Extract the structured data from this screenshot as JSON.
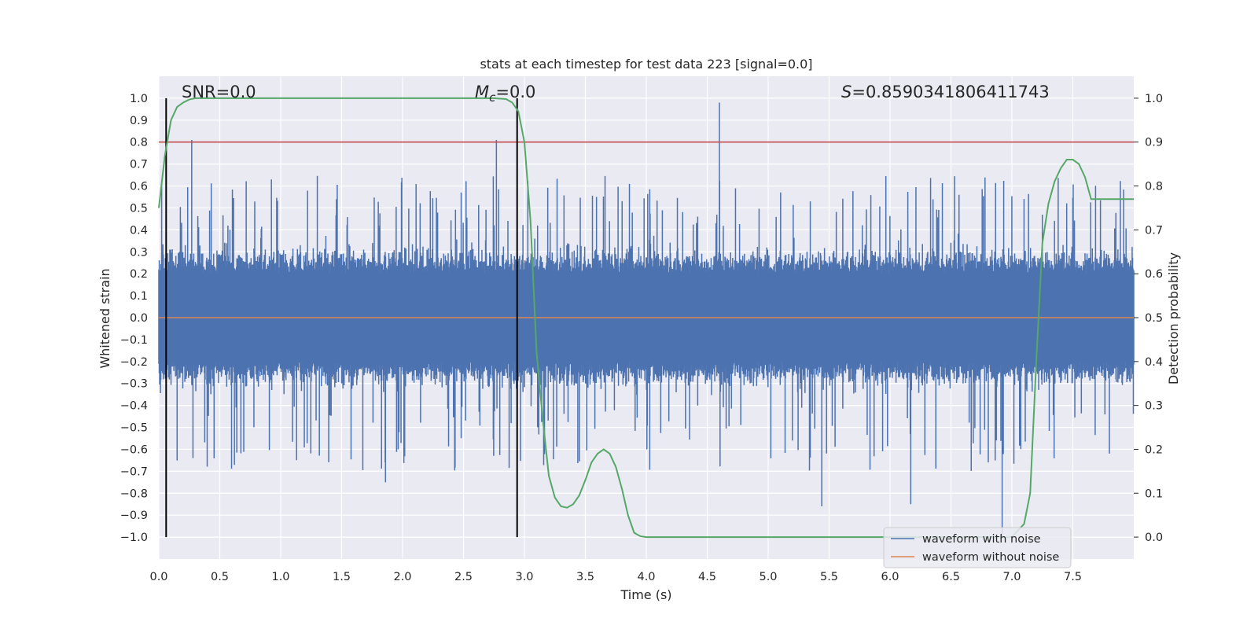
{
  "chart_data": {
    "type": "line",
    "title": "stats at each timestep for test data 223 [signal=0.0]",
    "xlabel": "Time (s)",
    "ylabel_left": "Whitened strain",
    "ylabel_right": "Detection probability",
    "xlim": [
      0.0,
      8.0
    ],
    "ylim_left": [
      -1.1,
      1.1
    ],
    "ylim_right": [
      -0.05,
      1.05
    ],
    "x_ticks": [
      0.0,
      0.5,
      1.0,
      1.5,
      2.0,
      2.5,
      3.0,
      3.5,
      4.0,
      4.5,
      5.0,
      5.5,
      6.0,
      6.5,
      7.0,
      7.5
    ],
    "x_tick_labels": [
      "0.0",
      "0.5",
      "1.0",
      "1.5",
      "2.0",
      "2.5",
      "3.0",
      "3.5",
      "4.0",
      "4.5",
      "5.0",
      "5.5",
      "6.0",
      "6.5",
      "7.0",
      "7.5"
    ],
    "y_left_ticks": [
      1.0,
      0.9,
      0.8,
      0.7,
      0.6,
      0.5,
      0.4,
      0.3,
      0.2,
      0.1,
      0.0,
      -0.1,
      -0.2,
      -0.3,
      -0.4,
      -0.5,
      -0.6,
      -0.7,
      -0.8,
      -0.9,
      -1.0
    ],
    "y_left_tick_labels": [
      "1.0",
      "0.9",
      "0.8",
      "0.7",
      "0.6",
      "0.5",
      "0.4",
      "0.3",
      "0.2",
      "0.1",
      "0.0",
      "−0.1",
      "−0.2",
      "−0.3",
      "−0.4",
      "−0.5",
      "−0.6",
      "−0.7",
      "−0.8",
      "−0.9",
      "−1.0"
    ],
    "y_right_ticks": [
      1.0,
      0.9,
      0.8,
      0.7,
      0.6,
      0.5,
      0.4,
      0.3,
      0.2,
      0.1,
      0.0
    ],
    "y_right_tick_labels": [
      "1.0",
      "0.9",
      "0.8",
      "0.7",
      "0.6",
      "0.5",
      "0.4",
      "0.3",
      "0.2",
      "0.1",
      "0.0"
    ],
    "annotations": {
      "snr": "SNR=0.0",
      "mc_symbol": "M",
      "mc_sub": "c",
      "mc_value": "=0.0",
      "s_symbol": "S",
      "s_value": "=0.8590341806411743"
    },
    "vertical_lines_x": [
      0.06,
      2.94
    ],
    "vertical_lines_ylim": [
      -1.0,
      1.0
    ],
    "threshold_line_detection_probability": 0.9,
    "series": [
      {
        "name": "waveform with noise",
        "color": "#4c72b0",
        "description_stats": {
          "typical_amplitude": 0.4,
          "notable_peaks": [
            [
              0.27,
              0.81
            ],
            [
              2.77,
              0.81
            ],
            [
              4.6,
              0.98
            ],
            [
              1.86,
              -0.75
            ],
            [
              6.92,
              -1.0
            ],
            [
              5.44,
              -0.86
            ],
            [
              6.17,
              -0.85
            ]
          ]
        }
      },
      {
        "name": "waveform without noise",
        "color": "#dd8452",
        "y_constant": 0.0
      },
      {
        "name": "detection probability",
        "color": "#55a868",
        "axis": "right",
        "x": [
          0.0,
          0.05,
          0.1,
          0.15,
          0.2,
          0.25,
          0.3,
          0.4,
          0.6,
          1.0,
          2.0,
          2.5,
          2.75,
          2.85,
          2.9,
          2.95,
          3.0,
          3.05,
          3.1,
          3.15,
          3.2,
          3.25,
          3.3,
          3.35,
          3.4,
          3.45,
          3.5,
          3.55,
          3.6,
          3.65,
          3.7,
          3.75,
          3.8,
          3.85,
          3.9,
          3.95,
          4.0,
          4.05,
          4.1,
          4.15,
          4.2,
          4.3,
          5.0,
          6.0,
          6.5,
          7.0,
          7.1,
          7.15,
          7.2,
          7.25,
          7.3,
          7.35,
          7.4,
          7.45,
          7.5,
          7.55,
          7.6,
          7.65,
          7.7,
          7.75,
          7.8,
          7.85,
          7.9,
          7.95,
          8.0
        ],
        "y": [
          0.75,
          0.87,
          0.95,
          0.98,
          0.99,
          0.997,
          1.0,
          1.0,
          1.0,
          1.0,
          1.0,
          1.0,
          1.0,
          0.998,
          0.99,
          0.97,
          0.9,
          0.72,
          0.42,
          0.27,
          0.14,
          0.09,
          0.07,
          0.067,
          0.075,
          0.095,
          0.13,
          0.17,
          0.19,
          0.2,
          0.19,
          0.16,
          0.11,
          0.05,
          0.01,
          0.002,
          0.0,
          0.0,
          0.0,
          0.0,
          0.0,
          0.0,
          0.0,
          0.0,
          0.0,
          0.0,
          0.03,
          0.1,
          0.4,
          0.67,
          0.76,
          0.81,
          0.84,
          0.86,
          0.86,
          0.85,
          0.82,
          0.77,
          0.77,
          0.77,
          0.77,
          0.77,
          0.77,
          0.77,
          0.77
        ]
      }
    ],
    "legend": {
      "placement": "lower-right",
      "entries": [
        {
          "label": "waveform with noise",
          "color": "#4c72b0"
        },
        {
          "label": "waveform without noise",
          "color": "#dd8452"
        }
      ]
    },
    "colors": {
      "plot_background": "#eaeaf2",
      "grid": "#ffffff",
      "noise_wave": "#4c72b0",
      "clean_wave": "#dd8452",
      "probability": "#55a868",
      "threshold": "#c44e52",
      "vlines": "#000000"
    }
  }
}
